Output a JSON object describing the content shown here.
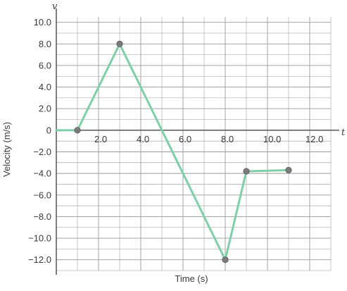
{
  "chart_data": {
    "type": "line",
    "xlabel": "Time (s)",
    "ylabel": "Velocity (m/s)",
    "x_axis_letter": "t",
    "y_axis_letter": "v",
    "xlim": [
      0,
      13.0
    ],
    "ylim": [
      -13.0,
      10.5
    ],
    "x_ticks": [
      "2.0",
      "4.0",
      "6.0",
      "8.0",
      "10.0",
      "12.0"
    ],
    "y_ticks": [
      "10.0",
      "8.0",
      "6.0",
      "4.0",
      "2.0",
      "0",
      "−2.0",
      "−4.0",
      "−6.0",
      "−8.0",
      "−10.0",
      "−12.0"
    ],
    "grid": true,
    "series": [
      {
        "x": [
          0,
          1.0,
          3.0,
          8.0,
          9.0,
          11.0
        ],
        "y": [
          0,
          0,
          8.0,
          -12.0,
          -3.8,
          -3.7
        ],
        "marked_points": [
          1,
          2,
          3,
          4,
          5
        ]
      }
    ],
    "colors": {
      "line": "#7fcfa8",
      "marker": "#7a7a7a",
      "grid": "#9a9a9a",
      "axis": "#4a4a4a"
    }
  }
}
